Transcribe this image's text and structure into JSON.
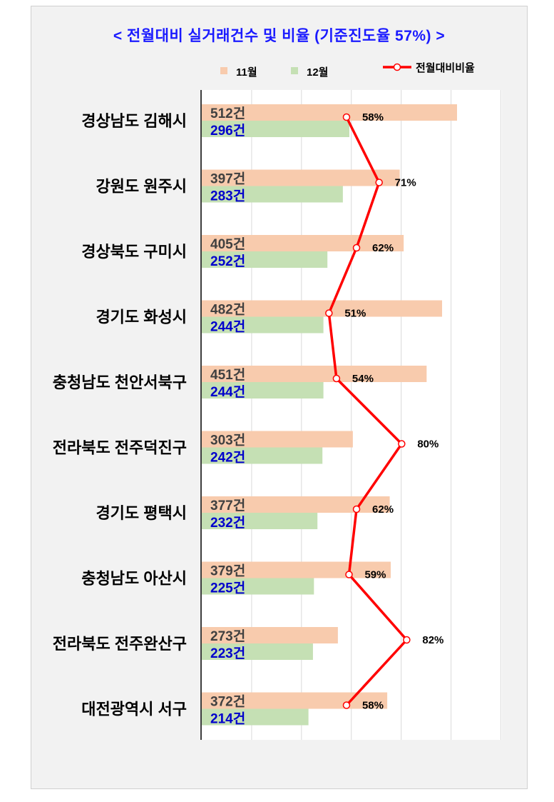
{
  "chart_data": {
    "type": "bar",
    "orientation": "horizontal",
    "title": "< 전월대비 실거래건수 및 비율 (기준진도율 57%) >",
    "categories": [
      "경상남도 김해시",
      "강원도 원주시",
      "경상북도 구미시",
      "경기도 화성시",
      "충청남도 천안서북구",
      "전라북도 전주덕진구",
      "경기도 평택시",
      "충청남도 아산시",
      "전라북도 전주완산구",
      "대전광역시 서구"
    ],
    "series": [
      {
        "name": "11월",
        "values": [
          512,
          397,
          405,
          482,
          451,
          303,
          377,
          379,
          273,
          372
        ],
        "color": "#f8cbad",
        "label_color": "#404040"
      },
      {
        "name": "12월",
        "values": [
          296,
          283,
          252,
          244,
          244,
          242,
          232,
          225,
          223,
          214
        ],
        "color": "#c5e0b4",
        "label_color": "#0000cc"
      }
    ],
    "value_suffix": "건",
    "line_series": {
      "name": "전월대비비율",
      "values": [
        58,
        71,
        62,
        51,
        54,
        80,
        62,
        59,
        82,
        58
      ],
      "suffix": "%",
      "color": "#ff0000",
      "range": [
        0,
        120
      ]
    },
    "xlim": [
      0,
      600
    ],
    "grid": true,
    "legend": "top"
  }
}
